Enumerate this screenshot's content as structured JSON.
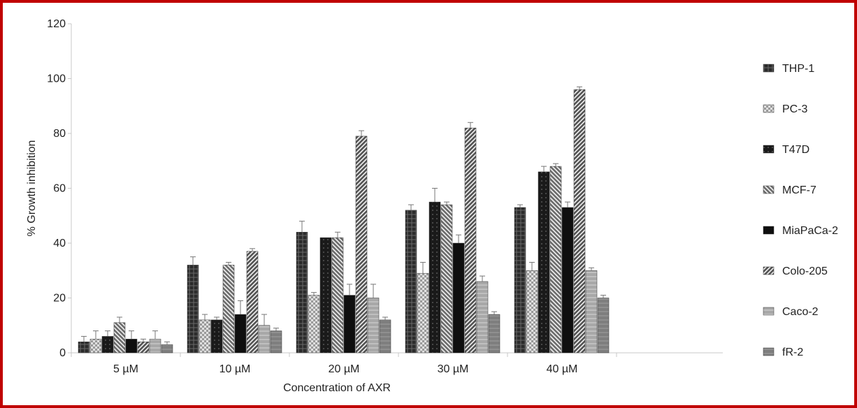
{
  "chart_data": {
    "type": "bar",
    "title": "",
    "xlabel": "Concentration of AXR",
    "ylabel": "% Growth inhibition",
    "ylim": [
      0,
      120
    ],
    "yticks": [
      "0",
      "20",
      "40",
      "60",
      "80",
      "100",
      "120"
    ],
    "categories": [
      "5 µM",
      "10 µM",
      "20 µM",
      "30 µM",
      "40 µM"
    ],
    "legend_position": "right",
    "grid": false,
    "series": [
      {
        "name": "THP-1",
        "values": [
          4,
          32,
          44,
          52,
          53
        ],
        "errors": [
          2,
          3,
          4,
          2,
          1
        ],
        "color": "#2b2b2b",
        "pattern": "dense-dark"
      },
      {
        "name": "PC-3",
        "values": [
          5,
          12,
          21,
          29,
          30
        ],
        "errors": [
          3,
          2,
          1,
          4,
          3
        ],
        "color": "#9a9a9a",
        "pattern": "checker"
      },
      {
        "name": "T47D",
        "values": [
          6,
          12,
          42,
          55,
          66
        ],
        "errors": [
          2,
          1,
          0,
          5,
          2
        ],
        "color": "#1a1a1a",
        "pattern": "dark-dots"
      },
      {
        "name": "MCF-7",
        "values": [
          11,
          32,
          42,
          54,
          68
        ],
        "errors": [
          2,
          1,
          2,
          1,
          1
        ],
        "color": "#6d6d6d",
        "pattern": "diagonal-back"
      },
      {
        "name": "MiaPaCa-2",
        "values": [
          5,
          14,
          21,
          40,
          53
        ],
        "errors": [
          3,
          5,
          4,
          3,
          2
        ],
        "color": "#0f0f0f",
        "pattern": "solid-dark"
      },
      {
        "name": "Colo-205",
        "values": [
          4,
          37,
          79,
          82,
          96
        ],
        "errors": [
          1,
          1,
          2,
          2,
          1
        ],
        "color": "#555555",
        "pattern": "diagonal-fwd"
      },
      {
        "name": "Caco-2",
        "values": [
          5,
          10,
          20,
          26,
          30
        ],
        "errors": [
          3,
          4,
          5,
          2,
          1
        ],
        "color": "#a8a8a8",
        "pattern": "light"
      },
      {
        "name": "fR-2",
        "values": [
          3,
          8,
          12,
          14,
          20
        ],
        "errors": [
          1,
          1,
          1,
          1,
          1
        ],
        "color": "#7e7e7e",
        "pattern": "medium"
      }
    ]
  }
}
